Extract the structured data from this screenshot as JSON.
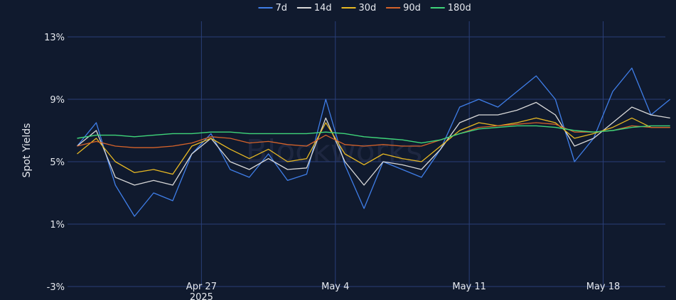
{
  "colors": {
    "background": "#101a2e",
    "grid": "#2a3f78",
    "text": "#e6e9ef"
  },
  "watermark": "Blockworks",
  "chart_data": {
    "type": "line",
    "title": "",
    "xlabel": "",
    "ylabel": "Spot Yields",
    "x_range": [
      "2025-04-20T00:00",
      "2025-05-21T06:00"
    ],
    "ylim": [
      -3,
      14
    ],
    "y_ticks": [
      -3,
      1,
      5,
      9,
      13
    ],
    "y_tick_labels": [
      "-3%",
      "1%",
      "5%",
      "9%",
      "13%"
    ],
    "x_ticks": [
      {
        "date": "2025-04-27",
        "label": "Apr 27",
        "sublabel": "2025"
      },
      {
        "date": "2025-05-04",
        "label": "May 4",
        "sublabel": ""
      },
      {
        "date": "2025-05-11",
        "label": "May 11",
        "sublabel": ""
      },
      {
        "date": "2025-05-18",
        "label": "May 18",
        "sublabel": ""
      }
    ],
    "grid": true,
    "legend_position": "top-center",
    "series": [
      {
        "name": "7d",
        "color": "#3f7ee8",
        "width": 1.3,
        "x": [
          "04-20",
          "04-21",
          "04-22",
          "04-23",
          "04-24",
          "04-25",
          "04-26",
          "04-27",
          "04-28",
          "04-29",
          "04-30",
          "05-01",
          "05-02",
          "05-03",
          "05-04",
          "05-05",
          "05-06",
          "05-07",
          "05-08",
          "05-09",
          "05-10",
          "05-11",
          "05-12",
          "05-13",
          "05-14",
          "05-15",
          "05-16",
          "05-17",
          "05-18",
          "05-19",
          "05-20",
          "05-21"
        ],
        "values": [
          6.0,
          7.5,
          3.5,
          1.5,
          3.0,
          2.5,
          5.5,
          6.8,
          4.5,
          4.0,
          5.5,
          3.8,
          4.2,
          9.0,
          4.8,
          2.0,
          5.0,
          4.5,
          4.0,
          5.8,
          8.5,
          9.0,
          8.5,
          9.5,
          10.5,
          9.0,
          5.0,
          6.5,
          9.5,
          11.0,
          8.0,
          9.0
        ]
      },
      {
        "name": "14d",
        "color": "#d9d9d9",
        "width": 1.3,
        "x": [
          "04-20",
          "04-21",
          "04-22",
          "04-23",
          "04-24",
          "04-25",
          "04-26",
          "04-27",
          "04-28",
          "04-29",
          "04-30",
          "05-01",
          "05-02",
          "05-03",
          "05-04",
          "05-05",
          "05-06",
          "05-07",
          "05-08",
          "05-09",
          "05-10",
          "05-11",
          "05-12",
          "05-13",
          "05-14",
          "05-15",
          "05-16",
          "05-17",
          "05-18",
          "05-19",
          "05-20",
          "05-21"
        ],
        "values": [
          6.0,
          7.0,
          4.0,
          3.5,
          3.8,
          3.5,
          5.5,
          6.5,
          5.0,
          4.5,
          5.2,
          4.5,
          4.6,
          7.8,
          5.0,
          3.5,
          5.0,
          4.8,
          4.5,
          5.8,
          7.5,
          8.0,
          8.0,
          8.3,
          8.8,
          8.0,
          6.0,
          6.5,
          7.5,
          8.5,
          8.0,
          7.8
        ]
      },
      {
        "name": "30d",
        "color": "#e8b923",
        "width": 1.3,
        "x": [
          "04-20",
          "04-21",
          "04-22",
          "04-23",
          "04-24",
          "04-25",
          "04-26",
          "04-27",
          "04-28",
          "04-29",
          "04-30",
          "05-01",
          "05-02",
          "05-03",
          "05-04",
          "05-05",
          "05-06",
          "05-07",
          "05-08",
          "05-09",
          "05-10",
          "05-11",
          "05-12",
          "05-13",
          "05-14",
          "05-15",
          "05-16",
          "05-17",
          "05-18",
          "05-19",
          "05-20",
          "05-21"
        ],
        "values": [
          5.5,
          6.5,
          5.0,
          4.3,
          4.5,
          4.2,
          6.0,
          6.5,
          5.8,
          5.2,
          5.8,
          5.0,
          5.2,
          7.5,
          5.5,
          4.8,
          5.5,
          5.2,
          5.0,
          6.0,
          7.0,
          7.5,
          7.3,
          7.5,
          7.8,
          7.5,
          6.5,
          6.8,
          7.2,
          7.8,
          7.2,
          7.2
        ]
      },
      {
        "name": "90d",
        "color": "#d6632a",
        "width": 1.3,
        "x": [
          "04-20",
          "04-21",
          "04-22",
          "04-23",
          "04-24",
          "04-25",
          "04-26",
          "04-27",
          "04-28",
          "04-29",
          "04-30",
          "05-01",
          "05-02",
          "05-03",
          "05-04",
          "05-05",
          "05-06",
          "05-07",
          "05-08",
          "05-09",
          "05-10",
          "05-11",
          "05-12",
          "05-13",
          "05-14",
          "05-15",
          "05-16",
          "05-17",
          "05-18",
          "05-19",
          "05-20",
          "05-21"
        ],
        "values": [
          6.0,
          6.3,
          6.0,
          5.9,
          5.9,
          6.0,
          6.2,
          6.6,
          6.5,
          6.2,
          6.3,
          6.1,
          6.0,
          6.7,
          6.1,
          6.0,
          6.1,
          6.0,
          6.0,
          6.4,
          6.8,
          7.2,
          7.3,
          7.4,
          7.5,
          7.4,
          6.9,
          6.9,
          7.0,
          7.3,
          7.2,
          7.2
        ]
      },
      {
        "name": "180d",
        "color": "#3fd67a",
        "width": 1.4,
        "x": [
          "04-20",
          "04-21",
          "04-22",
          "04-23",
          "04-24",
          "04-25",
          "04-26",
          "04-27",
          "04-28",
          "04-29",
          "04-30",
          "05-01",
          "05-02",
          "05-03",
          "05-04",
          "05-05",
          "05-06",
          "05-07",
          "05-08",
          "05-09",
          "05-10",
          "05-11",
          "05-12",
          "05-13",
          "05-14",
          "05-15",
          "05-16",
          "05-17",
          "05-18",
          "05-19",
          "05-20",
          "05-21"
        ],
        "values": [
          6.5,
          6.7,
          6.7,
          6.6,
          6.7,
          6.8,
          6.8,
          6.9,
          6.9,
          6.8,
          6.8,
          6.8,
          6.8,
          6.9,
          6.8,
          6.6,
          6.5,
          6.4,
          6.2,
          6.4,
          6.8,
          7.1,
          7.2,
          7.3,
          7.3,
          7.2,
          7.0,
          6.9,
          7.0,
          7.2,
          7.3,
          7.3
        ]
      }
    ]
  }
}
